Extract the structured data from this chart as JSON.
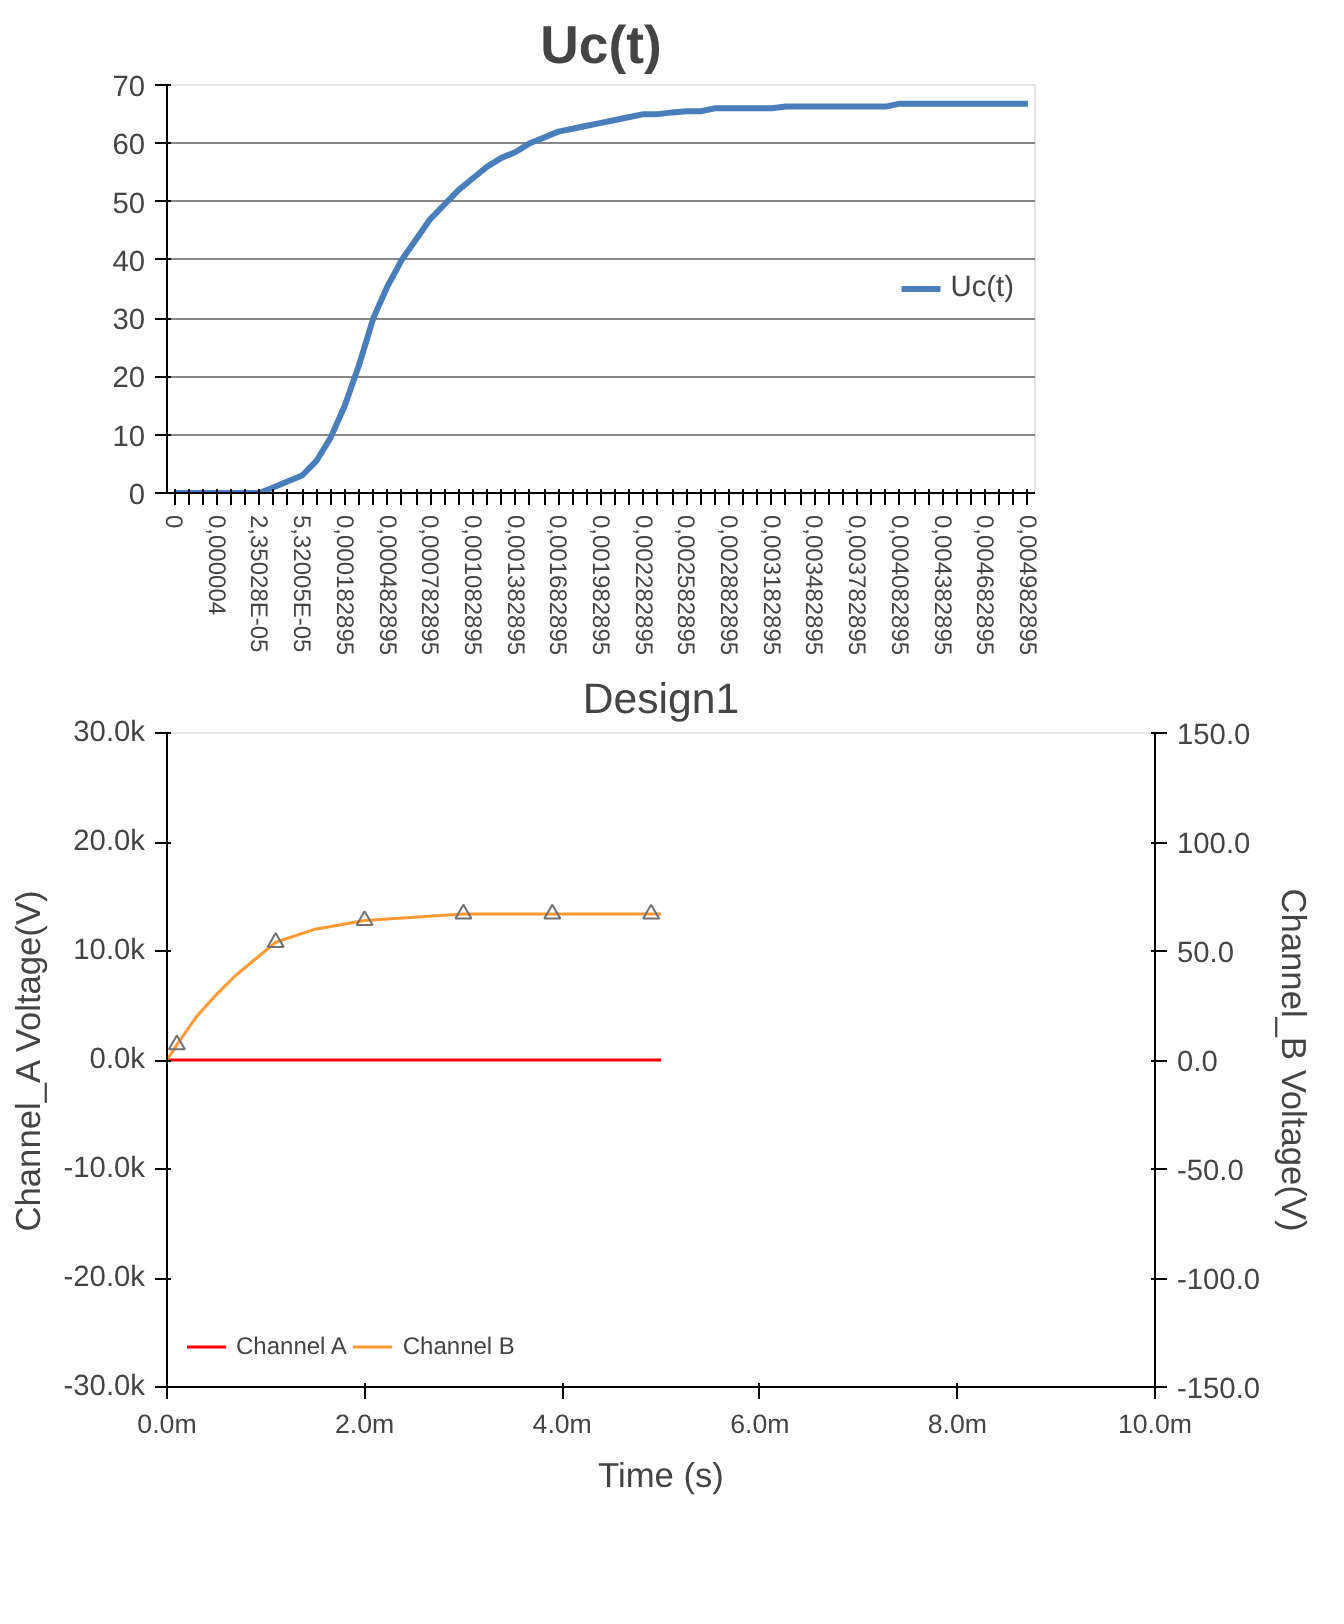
{
  "chart_data": [
    {
      "type": "line",
      "title": "Uc(t)",
      "categories": [
        "0",
        null,
        null,
        "0,000004",
        null,
        null,
        "2,35028E-05",
        null,
        null,
        "5,32005E-05",
        null,
        null,
        "0,000182895",
        null,
        null,
        "0,000482895",
        null,
        null,
        "0,000782895",
        null,
        null,
        "0,001082895",
        null,
        null,
        "0,001382895",
        null,
        null,
        "0,001682895",
        null,
        null,
        "0,001982895",
        null,
        null,
        "0,002282895",
        null,
        null,
        "0,002582895",
        null,
        null,
        "0,002882895",
        null,
        null,
        "0,003182895",
        null,
        null,
        "0,003482895",
        null,
        null,
        "0,003782895",
        null,
        null,
        "0,004082895",
        null,
        null,
        "0,004382895",
        null,
        null,
        "0,004682895",
        null,
        null,
        "0,004982895"
      ],
      "series": [
        {
          "name": "Uc(t)",
          "color": "#4a7ebb",
          "values": [
            0,
            0,
            0,
            0,
            0,
            0,
            0,
            1,
            2,
            3,
            5.5,
            9.5,
            15,
            22,
            30,
            35.5,
            40,
            43.5,
            47,
            49.5,
            52,
            54,
            56,
            57.5,
            58.5,
            60,
            61,
            62,
            62.5,
            63,
            63.5,
            64,
            64.5,
            65,
            65,
            65.3,
            65.5,
            65.5,
            66,
            66,
            66,
            66,
            66,
            66.3,
            66.3,
            66.3,
            66.3,
            66.3,
            66.3,
            66.3,
            66.3,
            66.8,
            66.8,
            66.8,
            66.8,
            66.8,
            66.8,
            66.8,
            66.8,
            66.8,
            66.8
          ]
        }
      ],
      "ylim": [
        0,
        70
      ],
      "yticks": [
        0,
        10,
        20,
        30,
        40,
        50,
        60,
        70
      ],
      "grid": "y",
      "legend": "right"
    },
    {
      "type": "line",
      "title": "Design1",
      "xlabel": "Time (s)",
      "ylabel": "Channel_A Voltage(V)",
      "y2label": "Channel_B Voltage(V)",
      "xlim": [
        0,
        10
      ],
      "xticks": [
        {
          "value": 0,
          "label": "0.0m"
        },
        {
          "value": 2,
          "label": "2.0m"
        },
        {
          "value": 4,
          "label": "4.0m"
        },
        {
          "value": 6,
          "label": "6.0m"
        },
        {
          "value": 8,
          "label": "8.0m"
        },
        {
          "value": 10,
          "label": "10.0m"
        }
      ],
      "ylim": [
        -30000,
        30000
      ],
      "yticks": [
        {
          "value": -30000,
          "label": "-30.0k"
        },
        {
          "value": -20000,
          "label": "-20.0k"
        },
        {
          "value": -10000,
          "label": "-10.0k"
        },
        {
          "value": 0,
          "label": "0.0k"
        },
        {
          "value": 10000,
          "label": "10.0k"
        },
        {
          "value": 20000,
          "label": "20.0k"
        },
        {
          "value": 30000,
          "label": "30.0k"
        }
      ],
      "y2lim": [
        -150,
        150
      ],
      "y2ticks": [
        {
          "value": -150,
          "label": "-150.0"
        },
        {
          "value": -100,
          "label": "-100.0"
        },
        {
          "value": -50,
          "label": "-50.0"
        },
        {
          "value": 0,
          "label": "0.0"
        },
        {
          "value": 50,
          "label": "50.0"
        },
        {
          "value": 100,
          "label": "100.0"
        },
        {
          "value": 150,
          "label": "150.0"
        }
      ],
      "series": [
        {
          "name": "Channel A",
          "color": "#ff0000",
          "x": [
            0,
            5
          ],
          "values": [
            0,
            0
          ]
        },
        {
          "name": "Channel B",
          "color": "#ff9933",
          "axis": "y2",
          "x": [
            0,
            0.1,
            0.3,
            0.5,
            0.7,
            1.1,
            1.5,
            2,
            3,
            3.9,
            4.9,
            5
          ],
          "values": [
            0,
            7,
            20,
            30,
            39,
            54,
            60,
            64,
            67,
            67,
            67,
            67
          ]
        },
        {
          "type": "scatter",
          "marker": "triangle",
          "color": "#707070",
          "axis": "y2",
          "x": [
            0.1,
            1.1,
            2,
            3,
            3.9,
            4.9
          ],
          "values": [
            7,
            54,
            64,
            67,
            67,
            67
          ]
        }
      ],
      "grid": false,
      "legend": "bottom left"
    }
  ]
}
